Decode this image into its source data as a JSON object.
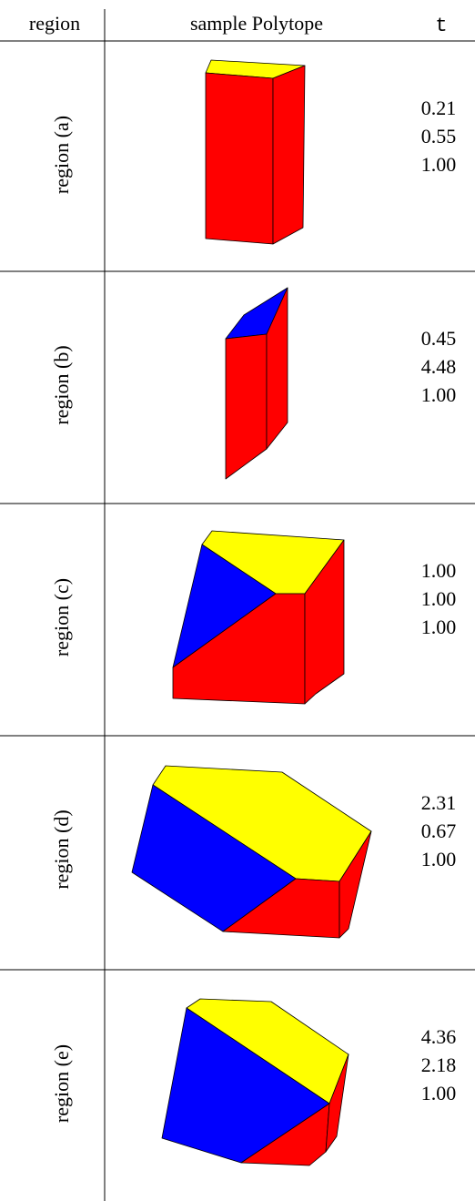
{
  "header": {
    "region": "region",
    "polytope": "sample Polytope",
    "t": "t"
  },
  "rows": [
    {
      "region": "region (a)",
      "t": [
        "0.21",
        "0.55",
        "1.00"
      ]
    },
    {
      "region": "region (b)",
      "t": [
        "0.45",
        "4.48",
        "1.00"
      ]
    },
    {
      "region": "region (c)",
      "t": [
        "1.00",
        "1.00",
        "1.00"
      ]
    },
    {
      "region": "region (d)",
      "t": [
        "2.31",
        "0.67",
        "1.00"
      ]
    },
    {
      "region": "region (e)",
      "t": [
        "4.36",
        "2.18",
        "1.00"
      ]
    }
  ]
}
